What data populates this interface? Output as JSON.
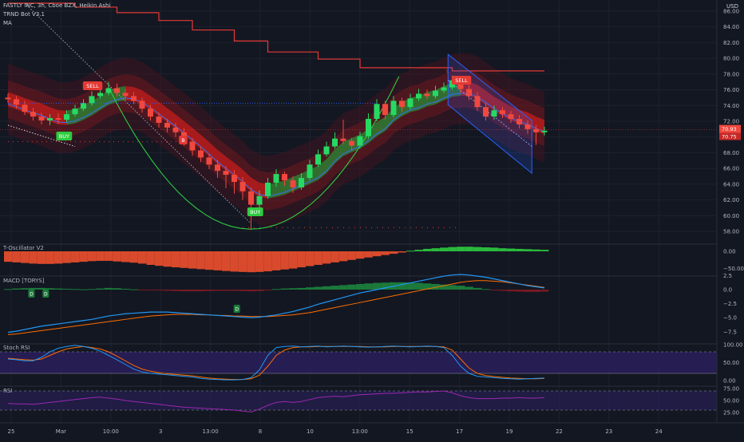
{
  "header": {
    "symbol_line": "FASTLY INC, 3h, Cboe BZX, Heikin Ashi",
    "indicator_1": "TRND Bot V3.1",
    "indicator_2": "MA",
    "currency": "USD"
  },
  "colors": {
    "bg": "#131722",
    "grid": "#1e222d",
    "axis_text": "#b2b5be",
    "up": "#26d962",
    "down": "#f0483e",
    "band_red": "#b71c1c",
    "band_green": "#2e7d32",
    "resistance": "#e53935",
    "channel": "#2962ff",
    "stoch_bg": "#2a1f5c",
    "rsi_line": "#9c27b0",
    "macd_line": "#2196f3",
    "signal_line": "#ff6d00"
  },
  "signals": {
    "sell_1": "SELL",
    "sell_2": "SELL",
    "buy_1": "BUY",
    "buy_2": "BUY",
    "b_tag": "B",
    "l_tag": "L"
  },
  "price_tags": {
    "last": "70.93",
    "last2": "70.75"
  },
  "panels": {
    "osc": {
      "label": "T-Oscillator V2",
      "ticks": [
        "0.00",
        "−50.00"
      ]
    },
    "macd": {
      "label": "MACD [TORYS]",
      "ticks": [
        "2.5",
        "0.0",
        "−2.5",
        "−5.0",
        "−7.5"
      ],
      "d_marks": [
        "D",
        "D",
        "D"
      ]
    },
    "stoch": {
      "label": "Stoch RSI",
      "ticks": [
        "100.00",
        "50.00",
        "0.00"
      ]
    },
    "rsi": {
      "label": "RSI",
      "ticks": [
        "75.00",
        "50.00",
        "25.00"
      ]
    }
  },
  "chart_data": {
    "type": "candlestick",
    "title": "FASTLY INC, 3h, Cboe BZX, Heikin Ashi",
    "y_ticks": [
      86,
      84,
      82,
      80,
      78,
      76,
      74,
      72,
      70,
      68,
      66,
      64,
      62,
      60,
      58
    ],
    "ylim": [
      57,
      87
    ],
    "x_ticks": [
      "25",
      "Mar",
      "10:00",
      "3",
      "13:00",
      "8",
      "10",
      "13:00",
      "15",
      "17",
      "19",
      "22",
      "23",
      "24"
    ],
    "resistance_level": 78.3,
    "last_price": 70.93,
    "candles": [
      {
        "o": 75.0,
        "c": 74.8,
        "h": 75.5,
        "l": 74.3
      },
      {
        "o": 74.8,
        "c": 74.1,
        "h": 75.2,
        "l": 73.6
      },
      {
        "o": 74.1,
        "c": 73.2,
        "h": 74.6,
        "l": 72.8
      },
      {
        "o": 73.2,
        "c": 72.6,
        "h": 73.7,
        "l": 72.1
      },
      {
        "o": 72.6,
        "c": 72.1,
        "h": 73.1,
        "l": 71.6
      },
      {
        "o": 72.1,
        "c": 72.4,
        "h": 72.9,
        "l": 71.5
      },
      {
        "o": 72.4,
        "c": 72.2,
        "h": 73.0,
        "l": 71.7
      },
      {
        "o": 72.2,
        "c": 72.9,
        "h": 73.4,
        "l": 71.9
      },
      {
        "o": 72.9,
        "c": 73.6,
        "h": 74.1,
        "l": 72.6
      },
      {
        "o": 73.6,
        "c": 74.3,
        "h": 74.8,
        "l": 73.3
      },
      {
        "o": 74.3,
        "c": 75.2,
        "h": 75.8,
        "l": 74.0
      },
      {
        "o": 75.2,
        "c": 75.6,
        "h": 76.3,
        "l": 74.9
      },
      {
        "o": 75.6,
        "c": 76.2,
        "h": 77.0,
        "l": 75.3
      },
      {
        "o": 76.2,
        "c": 75.6,
        "h": 76.8,
        "l": 75.2
      },
      {
        "o": 75.6,
        "c": 75.2,
        "h": 76.1,
        "l": 74.7
      },
      {
        "o": 75.2,
        "c": 74.6,
        "h": 75.7,
        "l": 74.2
      },
      {
        "o": 74.6,
        "c": 73.6,
        "h": 75.0,
        "l": 73.1
      },
      {
        "o": 73.6,
        "c": 72.6,
        "h": 74.1,
        "l": 72.1
      },
      {
        "o": 72.6,
        "c": 71.8,
        "h": 73.1,
        "l": 71.2
      },
      {
        "o": 71.8,
        "c": 71.2,
        "h": 72.3,
        "l": 70.6
      },
      {
        "o": 71.2,
        "c": 70.6,
        "h": 71.8,
        "l": 70.0
      },
      {
        "o": 70.6,
        "c": 69.4,
        "h": 71.1,
        "l": 68.9
      },
      {
        "o": 69.4,
        "c": 68.3,
        "h": 69.9,
        "l": 67.6
      },
      {
        "o": 68.3,
        "c": 67.4,
        "h": 68.8,
        "l": 66.8
      },
      {
        "o": 67.4,
        "c": 66.5,
        "h": 67.9,
        "l": 65.9
      },
      {
        "o": 66.5,
        "c": 65.7,
        "h": 67.1,
        "l": 64.8
      },
      {
        "o": 65.7,
        "c": 65.2,
        "h": 66.3,
        "l": 63.5
      },
      {
        "o": 65.2,
        "c": 64.3,
        "h": 65.8,
        "l": 62.8
      },
      {
        "o": 64.3,
        "c": 63.1,
        "h": 64.9,
        "l": 62.0
      },
      {
        "o": 63.1,
        "c": 61.4,
        "h": 63.6,
        "l": 58.2
      },
      {
        "o": 61.4,
        "c": 62.5,
        "h": 63.2,
        "l": 61.0
      },
      {
        "o": 62.5,
        "c": 64.2,
        "h": 64.8,
        "l": 62.2
      },
      {
        "o": 64.2,
        "c": 65.3,
        "h": 65.9,
        "l": 63.7
      },
      {
        "o": 65.3,
        "c": 64.5,
        "h": 65.6,
        "l": 63.8
      },
      {
        "o": 64.5,
        "c": 63.6,
        "h": 65.0,
        "l": 62.9
      },
      {
        "o": 63.6,
        "c": 64.8,
        "h": 65.4,
        "l": 63.3
      },
      {
        "o": 64.8,
        "c": 66.5,
        "h": 67.1,
        "l": 64.5
      },
      {
        "o": 66.5,
        "c": 67.8,
        "h": 68.4,
        "l": 66.2
      },
      {
        "o": 67.8,
        "c": 68.8,
        "h": 69.4,
        "l": 67.5
      },
      {
        "o": 68.8,
        "c": 69.8,
        "h": 70.6,
        "l": 68.5
      },
      {
        "o": 69.8,
        "c": 69.5,
        "h": 72.2,
        "l": 69.1
      },
      {
        "o": 69.5,
        "c": 68.9,
        "h": 69.9,
        "l": 68.3
      },
      {
        "o": 68.9,
        "c": 70.1,
        "h": 70.7,
        "l": 68.6
      },
      {
        "o": 70.1,
        "c": 72.3,
        "h": 73.0,
        "l": 69.8
      },
      {
        "o": 72.3,
        "c": 74.2,
        "h": 74.8,
        "l": 72.0
      },
      {
        "o": 74.2,
        "c": 72.8,
        "h": 74.6,
        "l": 72.2
      },
      {
        "o": 72.8,
        "c": 74.6,
        "h": 75.2,
        "l": 72.5
      },
      {
        "o": 74.6,
        "c": 73.8,
        "h": 75.0,
        "l": 73.2
      },
      {
        "o": 73.8,
        "c": 74.9,
        "h": 75.5,
        "l": 73.5
      },
      {
        "o": 74.9,
        "c": 75.5,
        "h": 76.1,
        "l": 74.6
      },
      {
        "o": 75.5,
        "c": 75.2,
        "h": 76.0,
        "l": 74.8
      },
      {
        "o": 75.2,
        "c": 75.9,
        "h": 76.5,
        "l": 74.9
      },
      {
        "o": 75.9,
        "c": 76.3,
        "h": 76.9,
        "l": 75.6
      },
      {
        "o": 76.3,
        "c": 77.2,
        "h": 77.8,
        "l": 76.0
      },
      {
        "o": 77.2,
        "c": 76.1,
        "h": 77.6,
        "l": 75.6
      },
      {
        "o": 76.1,
        "c": 75.2,
        "h": 76.6,
        "l": 74.7
      },
      {
        "o": 75.2,
        "c": 73.8,
        "h": 75.7,
        "l": 73.3
      },
      {
        "o": 73.8,
        "c": 72.6,
        "h": 74.3,
        "l": 72.1
      },
      {
        "o": 72.6,
        "c": 73.4,
        "h": 74.0,
        "l": 72.2
      },
      {
        "o": 73.4,
        "c": 72.9,
        "h": 73.8,
        "l": 72.4
      },
      {
        "o": 72.9,
        "c": 72.3,
        "h": 73.3,
        "l": 71.8
      },
      {
        "o": 72.3,
        "c": 71.6,
        "h": 72.8,
        "l": 71.1
      },
      {
        "o": 71.6,
        "c": 71.0,
        "h": 72.1,
        "l": 70.4
      },
      {
        "o": 71.0,
        "c": 70.6,
        "h": 71.5,
        "l": 69.0
      },
      {
        "o": 70.6,
        "c": 70.8,
        "h": 71.3,
        "l": 70.2
      }
    ],
    "oscillator": [
      -34,
      -36,
      -38,
      -40,
      -41,
      -41,
      -40,
      -38,
      -36,
      -34,
      -32,
      -31,
      -31,
      -33,
      -35,
      -37,
      -40,
      -44,
      -47,
      -50,
      -52,
      -54,
      -56,
      -58,
      -60,
      -62,
      -64,
      -66,
      -67,
      -68,
      -67,
      -65,
      -62,
      -59,
      -56,
      -52,
      -48,
      -44,
      -40,
      -36,
      -32,
      -28,
      -24,
      -20,
      -16,
      -12,
      -8,
      -4,
      2,
      5,
      8,
      10,
      12,
      14,
      15,
      15,
      14,
      13,
      12,
      10,
      9,
      8,
      7,
      6,
      5
    ],
    "macd_hist": [
      0.1,
      0.2,
      0.25,
      0.3,
      0.3,
      0.25,
      0.2,
      0.15,
      0.1,
      0.05,
      0.1,
      0.2,
      0.3,
      0.25,
      0.15,
      0.05,
      -0.05,
      -0.1,
      -0.15,
      -0.2,
      -0.25,
      -0.3,
      -0.3,
      -0.3,
      -0.25,
      -0.2,
      -0.2,
      -0.2,
      -0.25,
      -0.3,
      -0.25,
      -0.1,
      0.1,
      0.2,
      0.25,
      0.3,
      0.4,
      0.5,
      0.6,
      0.7,
      0.8,
      0.9,
      1.0,
      1.1,
      1.2,
      1.25,
      1.3,
      1.3,
      1.25,
      1.2,
      1.1,
      1.0,
      0.9,
      0.8,
      0.7,
      0.5,
      0.3,
      0.1,
      -0.1,
      -0.2,
      -0.3,
      -0.35,
      -0.4,
      -0.4,
      -0.35
    ],
    "macd_line": [
      -7.6,
      -7.4,
      -7.1,
      -6.8,
      -6.5,
      -6.3,
      -6.1,
      -5.9,
      -5.7,
      -5.5,
      -5.3,
      -5.0,
      -4.7,
      -4.5,
      -4.3,
      -4.2,
      -4.1,
      -4.0,
      -4.0,
      -4.0,
      -4.1,
      -4.2,
      -4.3,
      -4.4,
      -4.5,
      -4.6,
      -4.7,
      -4.8,
      -4.9,
      -5.0,
      -4.9,
      -4.7,
      -4.5,
      -4.2,
      -3.9,
      -3.5,
      -3.1,
      -2.6,
      -2.2,
      -1.8,
      -1.4,
      -1.0,
      -0.6,
      -0.3,
      0.0,
      0.3,
      0.6,
      0.9,
      1.2,
      1.5,
      1.8,
      2.1,
      2.4,
      2.6,
      2.7,
      2.6,
      2.4,
      2.2,
      1.9,
      1.6,
      1.3,
      1.0,
      0.7,
      0.5,
      0.3
    ],
    "signal_line": [
      -8.0,
      -7.9,
      -7.7,
      -7.5,
      -7.3,
      -7.1,
      -6.9,
      -6.7,
      -6.5,
      -6.3,
      -6.1,
      -5.9,
      -5.7,
      -5.5,
      -5.3,
      -5.1,
      -4.9,
      -4.7,
      -4.6,
      -4.5,
      -4.4,
      -4.4,
      -4.4,
      -4.5,
      -4.5,
      -4.6,
      -4.6,
      -4.7,
      -4.7,
      -4.8,
      -4.8,
      -4.8,
      -4.7,
      -4.6,
      -4.5,
      -4.3,
      -4.1,
      -3.8,
      -3.5,
      -3.2,
      -2.9,
      -2.6,
      -2.3,
      -2.0,
      -1.7,
      -1.4,
      -1.1,
      -0.8,
      -0.5,
      -0.2,
      0.1,
      0.4,
      0.7,
      1.0,
      1.3,
      1.5,
      1.6,
      1.6,
      1.5,
      1.4,
      1.2,
      1.0,
      0.8,
      0.6,
      0.4
    ],
    "stoch_k": [
      60,
      58,
      55,
      55,
      65,
      80,
      90,
      95,
      98,
      95,
      90,
      82,
      70,
      58,
      45,
      32,
      24,
      20,
      18,
      16,
      14,
      12,
      10,
      6,
      4,
      3,
      2,
      2,
      3,
      8,
      30,
      70,
      92,
      95,
      96,
      94,
      95,
      96,
      94,
      95,
      96,
      95,
      94,
      93,
      94,
      95,
      96,
      95,
      94,
      95,
      96,
      95,
      92,
      70,
      40,
      20,
      12,
      10,
      8,
      6,
      5,
      4,
      5,
      6,
      7
    ],
    "stoch_d": [
      62,
      60,
      58,
      57,
      60,
      70,
      80,
      88,
      92,
      95,
      92,
      88,
      80,
      68,
      55,
      42,
      32,
      26,
      22,
      19,
      17,
      15,
      13,
      10,
      7,
      5,
      4,
      3,
      3,
      5,
      15,
      40,
      70,
      85,
      92,
      94,
      94,
      95,
      95,
      95,
      95,
      95,
      95,
      94,
      94,
      94,
      95,
      95,
      95,
      95,
      95,
      95,
      94,
      85,
      60,
      35,
      20,
      14,
      11,
      9,
      7,
      6,
      5,
      5,
      6
    ],
    "rsi": [
      44,
      43,
      43,
      42,
      44,
      46,
      48,
      50,
      52,
      54,
      56,
      57,
      55,
      53,
      50,
      48,
      46,
      44,
      42,
      40,
      38,
      36,
      35,
      34,
      33,
      32,
      31,
      30,
      28,
      26,
      32,
      40,
      46,
      48,
      46,
      48,
      52,
      56,
      58,
      59,
      58,
      60,
      62,
      63,
      64,
      65,
      65,
      66,
      67,
      68,
      68,
      69,
      70,
      66,
      60,
      56,
      54,
      54,
      54,
      55,
      55,
      56,
      55,
      55,
      56
    ]
  }
}
